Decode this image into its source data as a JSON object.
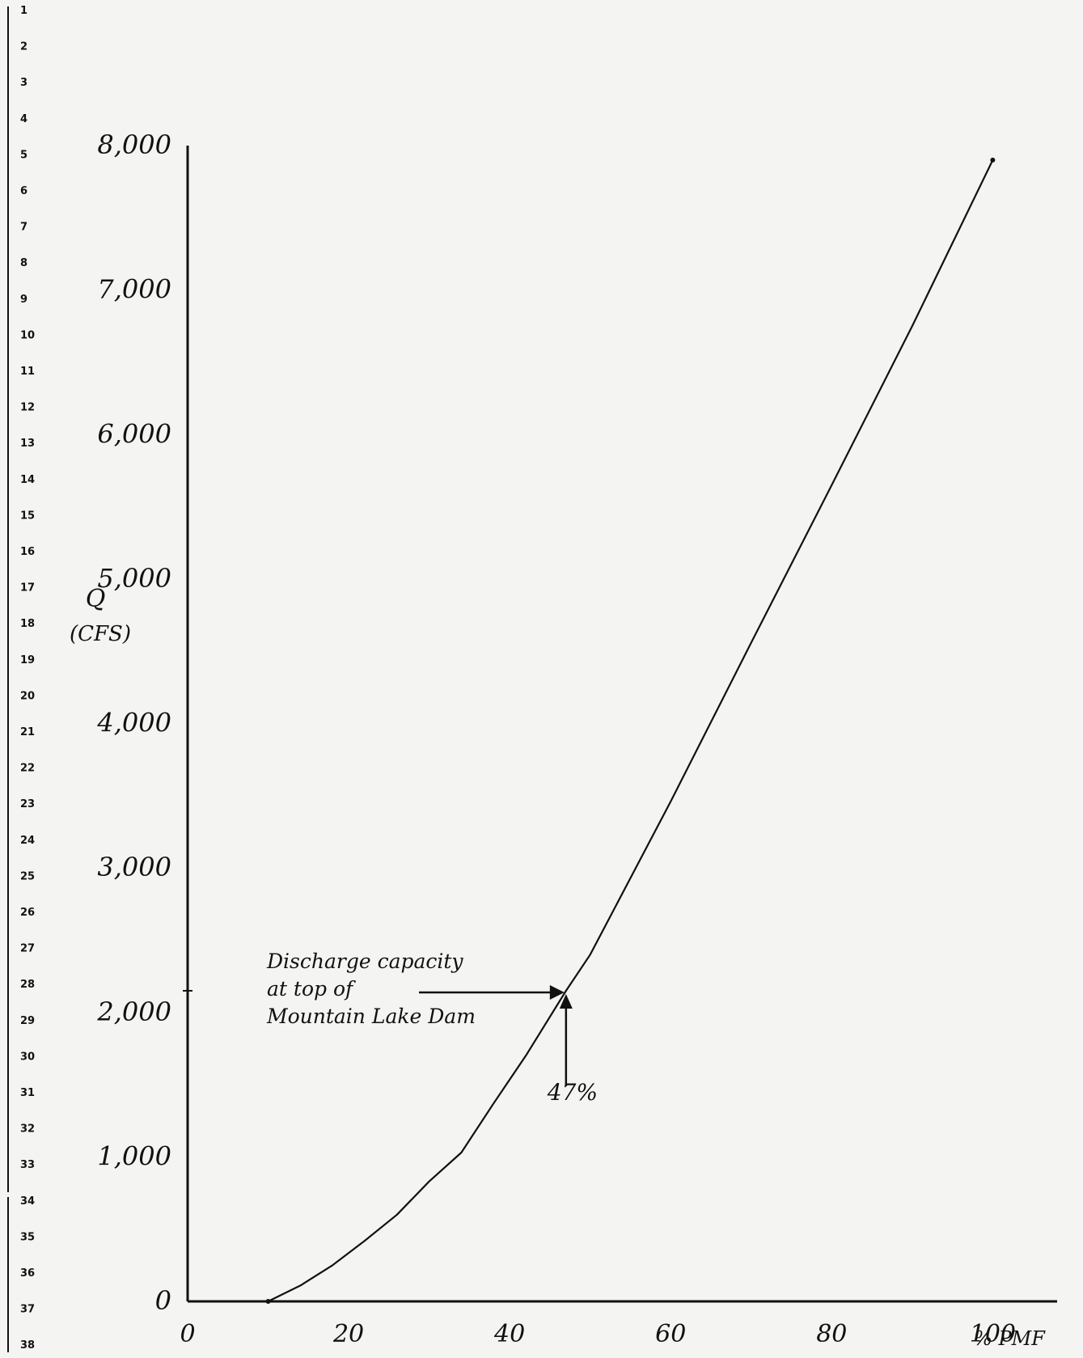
{
  "chart_data": {
    "type": "line",
    "title": "",
    "xlabel": "% PMF",
    "ylabel": "Q",
    "ylabel_unit": "(CFS)",
    "xlim": [
      0,
      108
    ],
    "ylim": [
      0,
      8000
    ],
    "x_ticks": [
      "0",
      "20",
      "40",
      "60",
      "80",
      "100"
    ],
    "y_ticks": [
      "0",
      "1,000",
      "2,000",
      "3,000",
      "4,000",
      "5,000",
      "6,000",
      "7,000",
      "8,000"
    ],
    "grid": false,
    "legend": "none",
    "series": [
      {
        "x": [
          10,
          14,
          18,
          22,
          26,
          30,
          34,
          38,
          42,
          47,
          50,
          60,
          70,
          80,
          90,
          100
        ],
        "y": [
          0,
          110,
          250,
          420,
          600,
          830,
          1030,
          1370,
          1700,
          2150,
          2400,
          3460,
          4560,
          5650,
          6750,
          7900
        ]
      }
    ],
    "annotation": {
      "lines": [
        "Discharge capacity",
        "at top of",
        "Mountain Lake Dam"
      ],
      "percent_label": "47%",
      "x": 47,
      "y": 2150
    },
    "margin_numbers": [
      "1",
      "2",
      "3",
      "4",
      "5",
      "6",
      "7",
      "8",
      "9",
      "10",
      "11",
      "12",
      "13",
      "14",
      "15",
      "16",
      "17",
      "18",
      "19",
      "20",
      "21",
      "22",
      "23",
      "24",
      "25",
      "26",
      "27",
      "28",
      "29",
      "30",
      "31",
      "32",
      "33",
      "34",
      "35",
      "36",
      "37",
      "38"
    ]
  },
  "colors": {
    "ink": "#111111",
    "paper": "#f4f4f2"
  }
}
